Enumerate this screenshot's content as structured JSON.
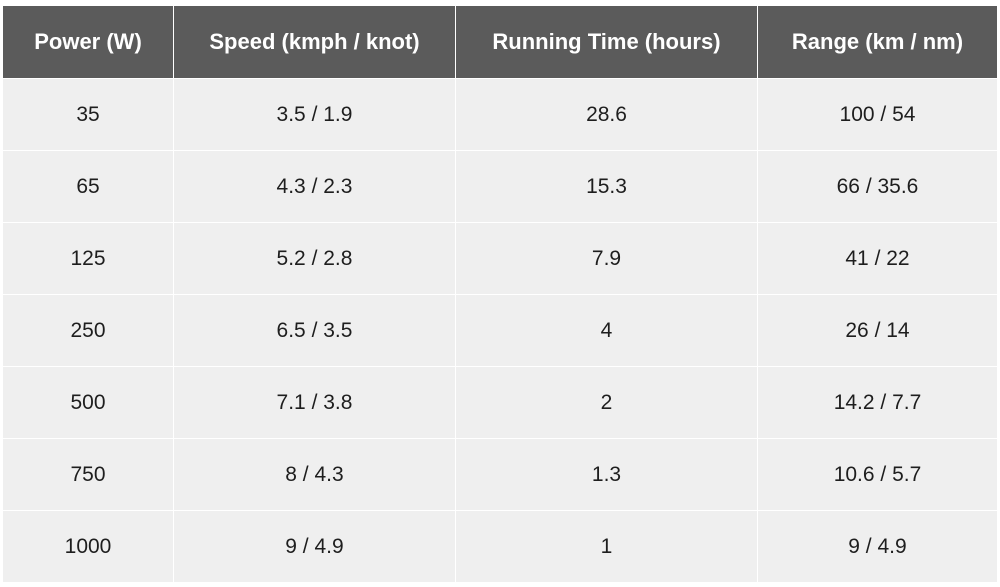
{
  "table": {
    "header": [
      "Power (W)",
      "Speed (kmph / knot)",
      "Running Time (hours)",
      "Range (km / nm)"
    ],
    "rows": [
      [
        "35",
        "3.5 / 1.9",
        "28.6",
        "100 / 54"
      ],
      [
        "65",
        "4.3 / 2.3",
        "15.3",
        "66 / 35.6"
      ],
      [
        "125",
        "5.2 / 2.8",
        "7.9",
        "41 / 22"
      ],
      [
        "250",
        "6.5 / 3.5",
        "4",
        "26 / 14"
      ],
      [
        "500",
        "7.1 / 3.8",
        "2",
        "14.2 / 7.7"
      ],
      [
        "750",
        "8 / 4.3",
        "1.3",
        "10.6 / 5.7"
      ],
      [
        "1000",
        "9 / 4.9",
        "1",
        "9 / 4.9"
      ]
    ]
  }
}
